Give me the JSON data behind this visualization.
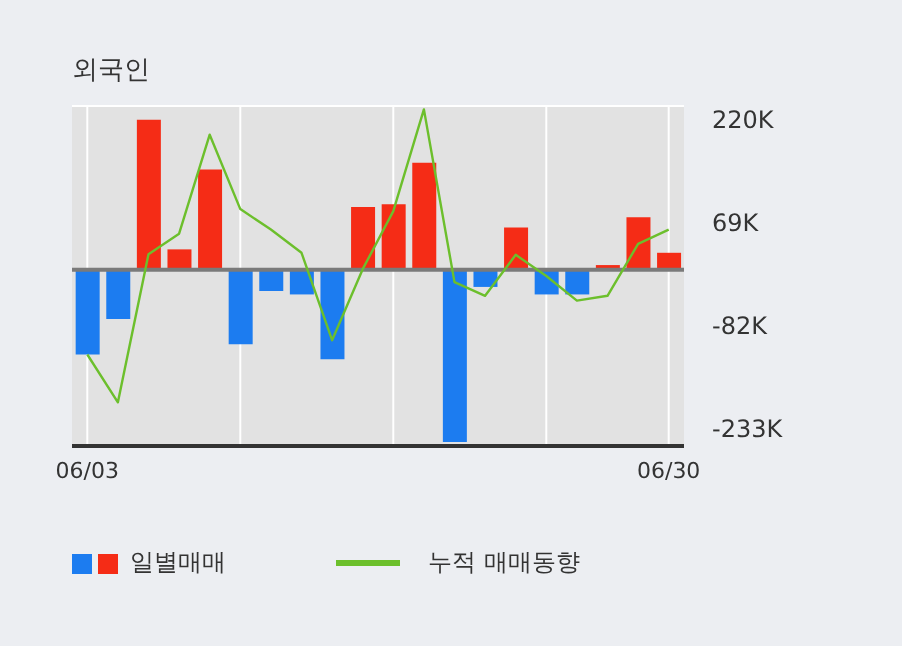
{
  "chart_data": {
    "type": "bar",
    "title": "외국인",
    "categories": [
      "06/03",
      null,
      null,
      null,
      null,
      null,
      null,
      null,
      null,
      null,
      null,
      null,
      null,
      null,
      null,
      null,
      null,
      null,
      null,
      "06/30"
    ],
    "series": [
      {
        "name": "일별매매",
        "values": [
          -124000,
          -72000,
          220000,
          30000,
          147000,
          -109000,
          -31000,
          -36000,
          -131000,
          92000,
          96000,
          157000,
          -252000,
          -25000,
          62000,
          -36000,
          -36000,
          7000,
          77000,
          25000
        ],
        "colors": [
          "#1c7cf0",
          "#1c7cf0",
          "#f52c16",
          "#f52c16",
          "#f52c16",
          "#1c7cf0",
          "#1c7cf0",
          "#1c7cf0",
          "#1c7cf0",
          "#f52c16",
          "#f52c16",
          "#f52c16",
          "#1c7cf0",
          "#1c7cf0",
          "#f52c16",
          "#1c7cf0",
          "#1c7cf0",
          "#f52c16",
          "#f52c16",
          "#f52c16"
        ]
      },
      {
        "name": "누적 매매동향",
        "type": "line",
        "color": "#6cbf2c",
        "values": [
          -124000,
          -194000,
          23000,
          53000,
          198000,
          89000,
          59000,
          25000,
          -103000,
          1000,
          86000,
          235000,
          -18000,
          -38000,
          22000,
          -9000,
          -45000,
          -38000,
          38000,
          59000
        ]
      }
    ],
    "ylim": [
      -258000,
      240000
    ],
    "yticks": [
      {
        "value": 220000,
        "label": "220K"
      },
      {
        "value": 69000,
        "label": "69K"
      },
      {
        "value": -82000,
        "label": "-82K"
      },
      {
        "value": -233000,
        "label": "-233K"
      }
    ],
    "ref_lines": [
      {
        "axis": "y",
        "value": 0,
        "color": "#7a7a7a"
      }
    ],
    "grid": true,
    "legend": "bottom",
    "marker": "none",
    "line_style": "solid"
  }
}
